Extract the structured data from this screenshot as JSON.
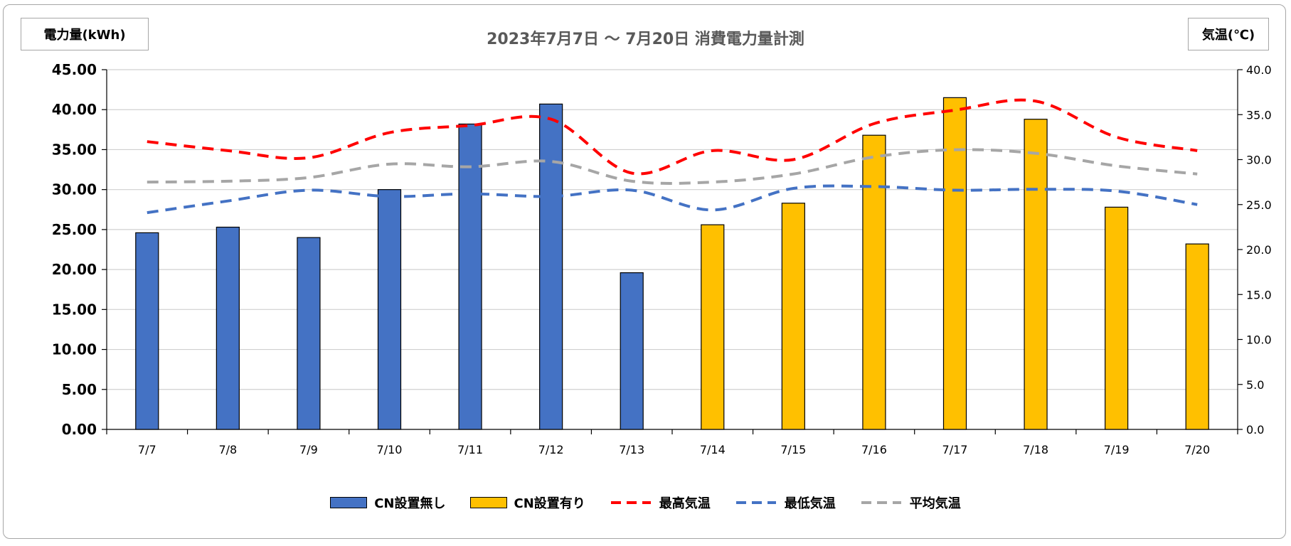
{
  "chart_data": {
    "type": "bar",
    "title": "2023年7月7日 ～ 7月20日 消費電力量計測",
    "y_left_label": "電力量(kWh)",
    "y_right_label": "気温(℃)",
    "y_left_lim": [
      0,
      45
    ],
    "y_left_ticks": [
      "0.00",
      "5.00",
      "10.00",
      "15.00",
      "20.00",
      "25.00",
      "30.00",
      "35.00",
      "40.00",
      "45.00"
    ],
    "y_right_lim": [
      0,
      40
    ],
    "y_right_ticks": [
      "0.0",
      "5.0",
      "10.0",
      "15.0",
      "20.0",
      "25.0",
      "30.0",
      "35.0",
      "40.0"
    ],
    "grid": true,
    "legend_position": "bottom",
    "categories": [
      "7/7",
      "7/8",
      "7/9",
      "7/10",
      "7/11",
      "7/12",
      "7/13",
      "7/14",
      "7/15",
      "7/16",
      "7/17",
      "7/18",
      "7/19",
      "7/20"
    ],
    "bar_series": [
      {
        "name": "CN設置無し",
        "color": "#4472c4",
        "values": [
          24.6,
          25.3,
          24.0,
          30.0,
          38.2,
          40.7,
          19.6,
          null,
          null,
          null,
          null,
          null,
          null,
          null
        ]
      },
      {
        "name": "CN設置有り",
        "color": "#ffc000",
        "values": [
          null,
          null,
          null,
          null,
          null,
          null,
          null,
          25.6,
          28.3,
          36.8,
          41.5,
          38.8,
          27.8,
          23.2
        ]
      }
    ],
    "line_series": [
      {
        "name": "最高気温",
        "color": "#ff0000",
        "values": [
          32.0,
          31.0,
          30.2,
          33.0,
          33.8,
          34.5,
          28.5,
          31.0,
          30.0,
          34.0,
          35.5,
          36.5,
          32.5,
          31.0
        ]
      },
      {
        "name": "最低気温",
        "color": "#4472c4",
        "values": [
          24.1,
          25.4,
          26.6,
          25.9,
          26.2,
          25.9,
          26.6,
          24.4,
          26.8,
          27.0,
          26.6,
          26.7,
          26.5,
          25.0
        ]
      },
      {
        "name": "平均気温",
        "color": "#a6a6a6",
        "values": [
          27.5,
          27.6,
          28.0,
          29.5,
          29.2,
          29.8,
          27.6,
          27.5,
          28.4,
          30.3,
          31.1,
          30.7,
          29.3,
          28.4
        ]
      }
    ]
  }
}
